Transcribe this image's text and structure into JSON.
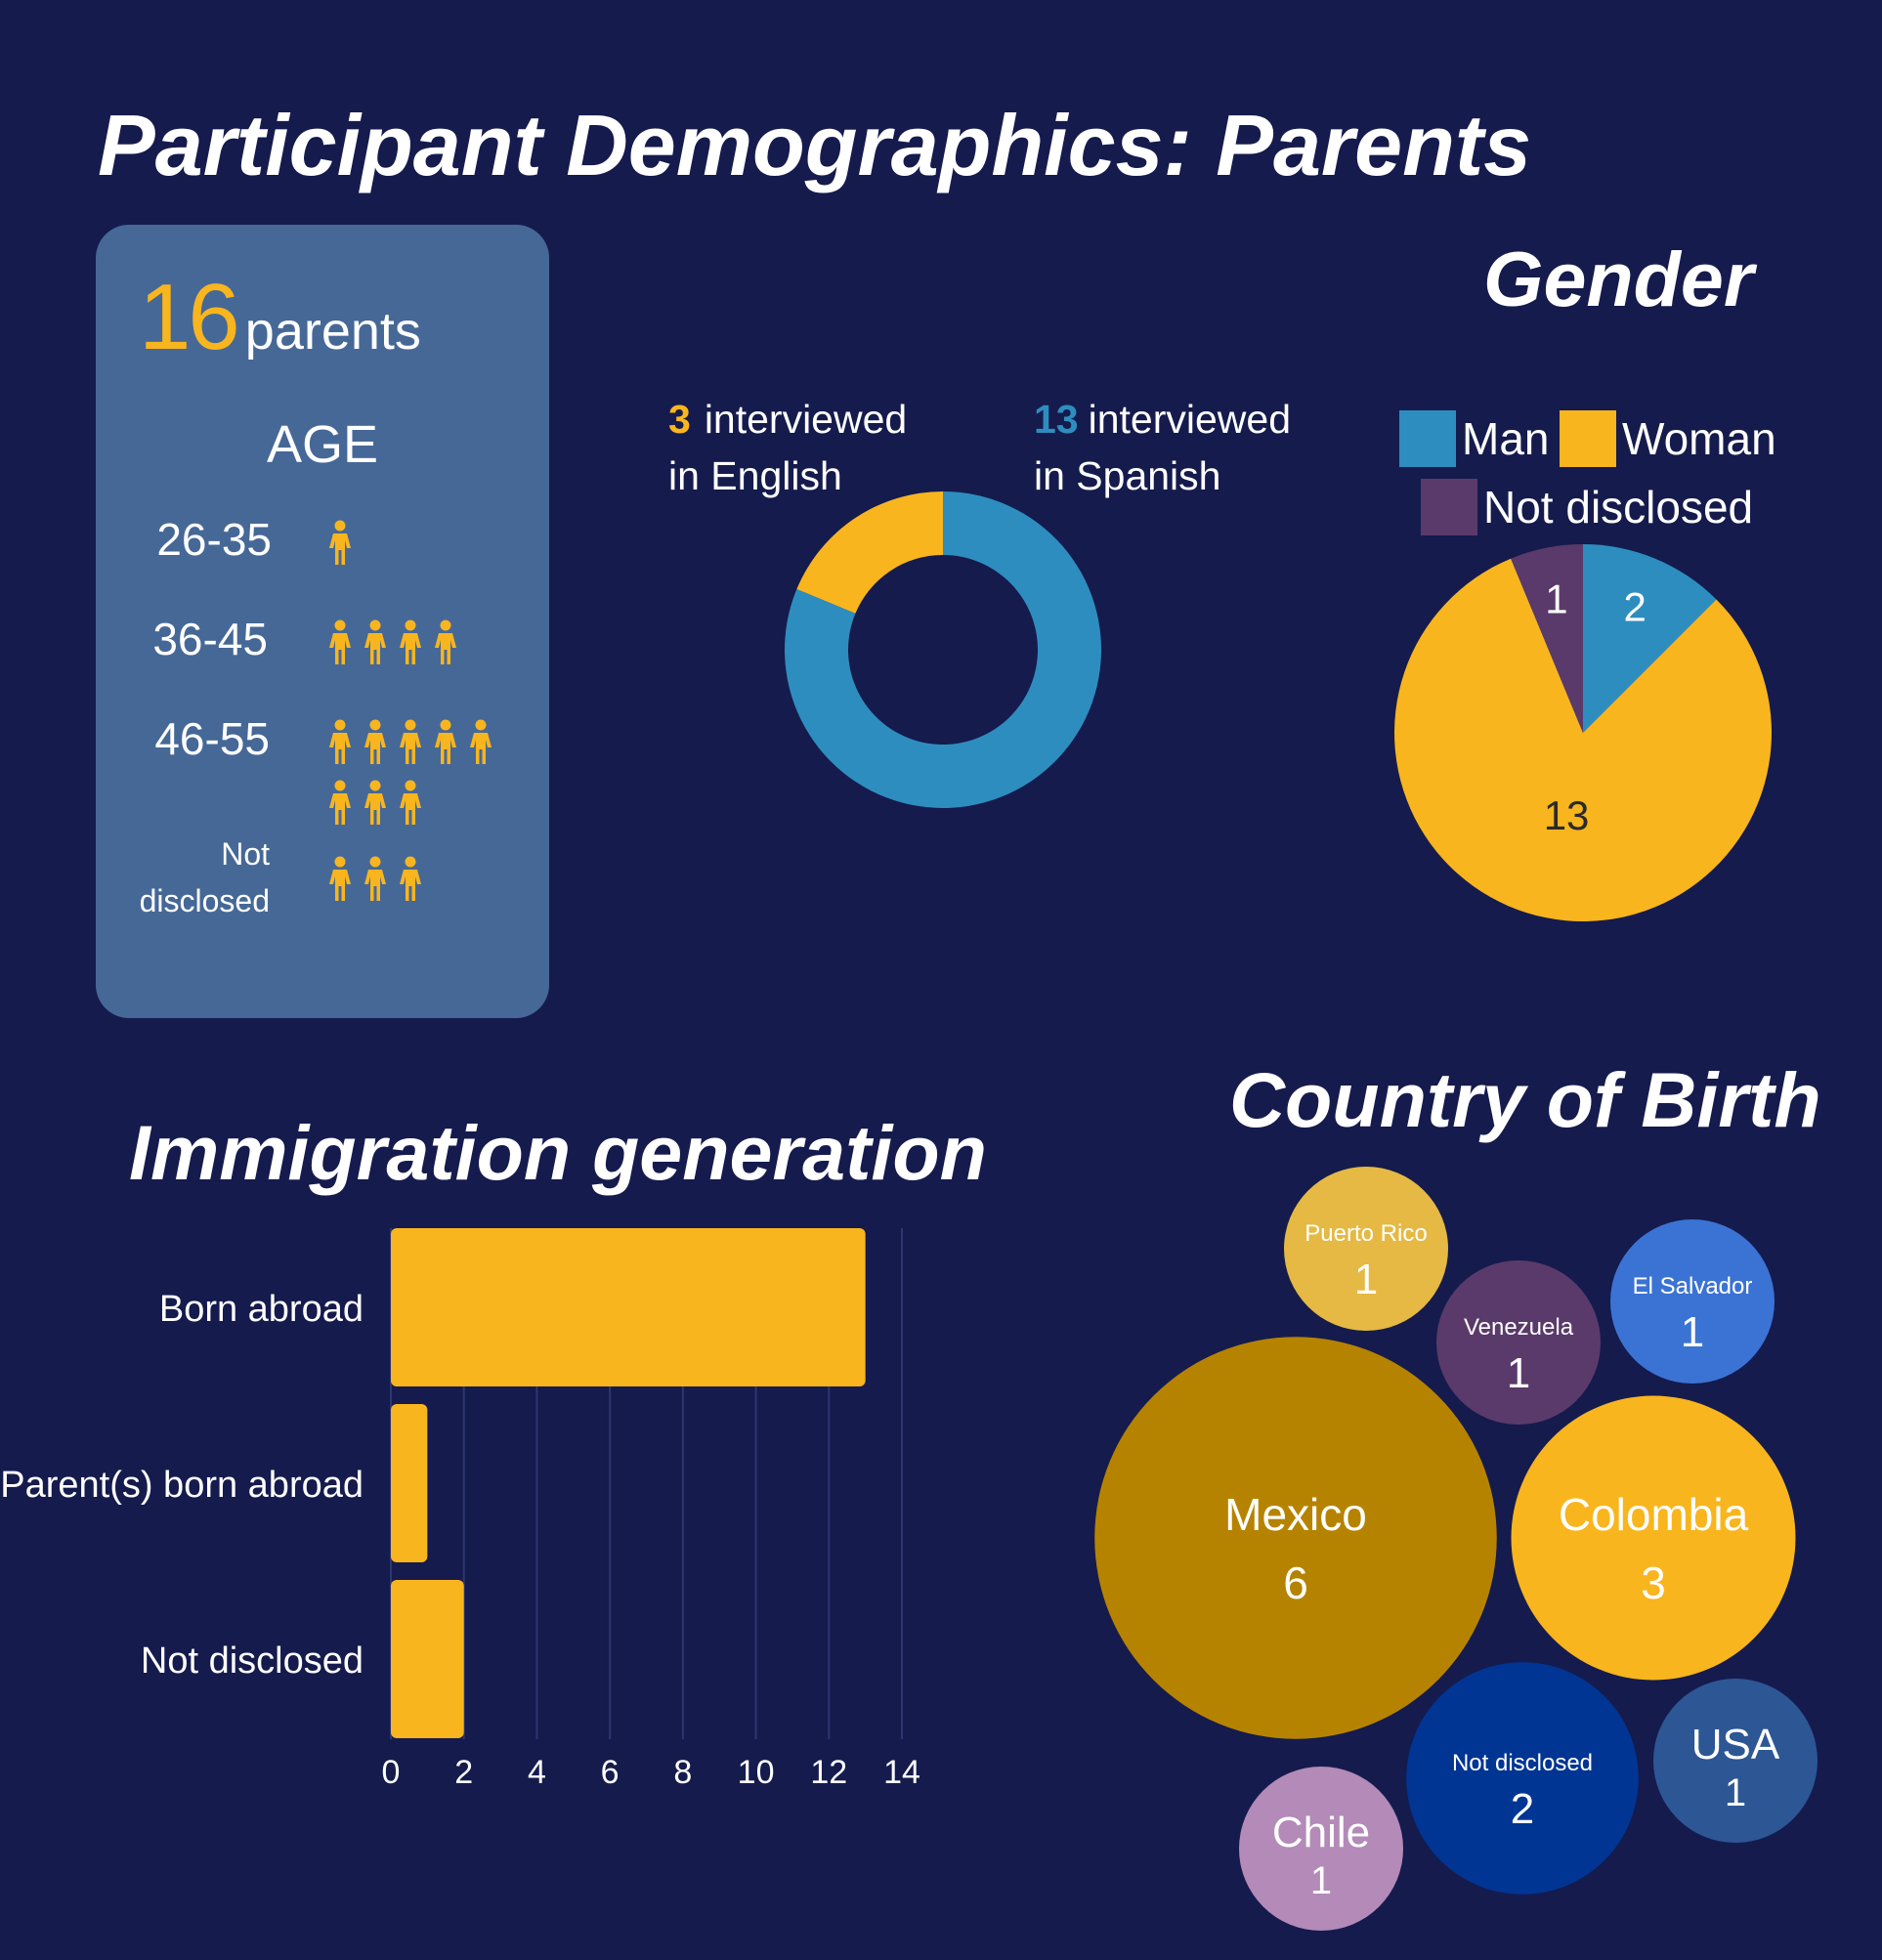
{
  "title": "Participant Demographics: Parents",
  "summary": {
    "count": "16",
    "count_label": "parents"
  },
  "colors": {
    "background": "#151b4d",
    "card": "#466897",
    "yellow": "#f9b51e",
    "blue": "#2e8dbf",
    "purple": "#5a3a6a",
    "dark_gold": "#b68300",
    "white": "#ffffff"
  },
  "icon_name": "person-icon",
  "age": {
    "heading": "AGE",
    "groups": [
      {
        "label": "26-35",
        "count": 1
      },
      {
        "label": "36-45",
        "count": 4
      },
      {
        "label": "46-55",
        "count": 8
      },
      {
        "label": "Not disclosed",
        "count": 3
      }
    ]
  },
  "language": {
    "english": {
      "count": "3",
      "text_line1": "interviewed",
      "text_line2": "in English"
    },
    "spanish": {
      "count": "13",
      "text_line1": "interviewed",
      "text_line2": "in Spanish"
    }
  },
  "gender": {
    "title": "Gender",
    "legend": [
      "Man",
      "Woman",
      "Not disclosed"
    ]
  },
  "immigration": {
    "title": "Immigration generation"
  },
  "country": {
    "title": "Country of Birth"
  },
  "chart_data": [
    {
      "type": "pie",
      "variant": "donut",
      "labels": [
        "English",
        "Spanish"
      ],
      "values": [
        3,
        13
      ],
      "colors": [
        "#f9b51e",
        "#2e8dbf"
      ]
    },
    {
      "type": "pie",
      "title": "Gender",
      "labels": [
        "Man",
        "Woman",
        "Not disclosed"
      ],
      "values": [
        2,
        13,
        1
      ],
      "colors": [
        "#2e8dbf",
        "#f9b51e",
        "#5a3a6a"
      ],
      "legend": "top"
    },
    {
      "type": "bar",
      "orientation": "horizontal",
      "title": "Immigration generation",
      "categories": [
        "Born abroad",
        "Parent(s) born abroad",
        "Not disclosed"
      ],
      "values": [
        13,
        1,
        2
      ],
      "xlim": [
        0,
        14
      ],
      "xticks": [
        "0",
        "2",
        "4",
        "6",
        "8",
        "10",
        "12",
        "14"
      ],
      "grid": "vertical",
      "color": "#f9b51e"
    },
    {
      "type": "bubble",
      "title": "Country of Birth",
      "categories": [
        "Puerto Rico",
        "Venezuela",
        "El Salvador",
        "Mexico",
        "Colombia",
        "Not disclosed",
        "USA",
        "Chile"
      ],
      "values": [
        1,
        1,
        1,
        6,
        3,
        2,
        1,
        1
      ],
      "colors": [
        "#e5b943",
        "#5a3a6a",
        "#3b73d4",
        "#b68300",
        "#f9b51e",
        "#003594",
        "#2d5694",
        "#b38ab8"
      ]
    }
  ]
}
